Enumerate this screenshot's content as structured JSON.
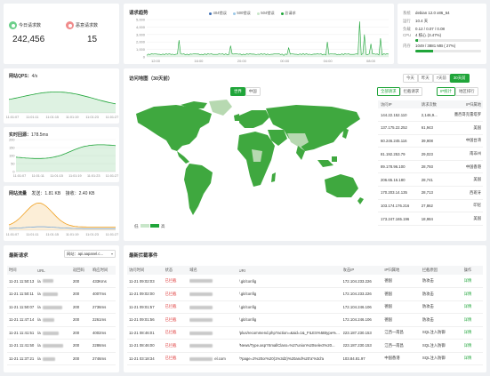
{
  "stats": {
    "today_label": "今日请求数",
    "today_value": "242,456",
    "malicious_label": "恶意请求数",
    "malicious_value": "15"
  },
  "trend": {
    "title": "请求趋势",
    "legend": [
      "404错误",
      "500错误",
      "504错误",
      "总请求"
    ],
    "legend_colors": [
      "#3f6fb5",
      "#9cc9e8",
      "#c8e6c9",
      "#20a53a"
    ],
    "y_ticks": [
      "5,000",
      "4,000",
      "3,000",
      "2,000",
      "1,000",
      "0"
    ],
    "x_ticks": [
      "12:00",
      "16:00",
      "20:00",
      "00:00",
      "04:00",
      "08:00"
    ]
  },
  "sysinfo": {
    "rows": [
      {
        "label": "系统",
        "value": "debian 12.0 x86_64"
      },
      {
        "label": "运行",
        "value": "10.4 天"
      },
      {
        "label": "负载",
        "value": "0.12 / 0.07 / 0.08"
      },
      {
        "label": "CPU",
        "value": "4 核心 (3.47%)"
      },
      {
        "label": "内存",
        "value": "1049 / 3881 MB ( 27%)"
      }
    ],
    "cpu_percent": 3.47,
    "mem_percent": 27
  },
  "qps": {
    "title": "网站QPS：",
    "value": "4/s",
    "x_ticks": [
      "11:01:07",
      "11:01:11",
      "11:01:15",
      "11:01:19",
      "11:01:23",
      "11:01:27"
    ]
  },
  "latency": {
    "title": "实时回源：",
    "value": "178.5ms",
    "y_ticks": [
      "200",
      "150",
      "100",
      "50",
      "0"
    ],
    "x_ticks": [
      "11:01:07",
      "11:01:11",
      "11:01:15",
      "11:01:19",
      "11:01:23",
      "11:01:27"
    ]
  },
  "traffic": {
    "title": "网站流量",
    "send_label": "发送：",
    "send_value": "1.81 KB",
    "recv_label": "接收：",
    "recv_value": "2.40 KB",
    "x_ticks": [
      "11:01:07",
      "11:01:11",
      "11:01:15",
      "11:01:19",
      "11:01:23",
      "11:01:27"
    ]
  },
  "map": {
    "title": "访问地图（30天前）",
    "tabs": [
      "世界",
      "中国"
    ],
    "range_tabs": [
      "今天",
      "昨天",
      "7天前",
      "30天前"
    ],
    "mode_tabs": [
      "全部请求",
      "拦截请求"
    ],
    "view_tabs": [
      "IP统计",
      "地区排行"
    ],
    "legend_low": "低",
    "legend_high": "高",
    "table_headers": [
      "访问IP",
      "请求次数",
      "IP归属地"
    ],
    "rows": [
      {
        "ip": "144.22.152.110",
        "count": "2,146,9...",
        "loc": "墨西哥克雷塔罗"
      },
      {
        "ip": "137.175.22.252",
        "count": "61,943",
        "loc": "美国"
      },
      {
        "ip": "60.246.245.116",
        "count": "39,908",
        "loc": "中国台湾"
      },
      {
        "ip": "81.192.253.79",
        "count": "29,023",
        "loc": "南非州"
      },
      {
        "ip": "89.178.96.100",
        "count": "28,793",
        "loc": "中国香港"
      },
      {
        "ip": "206.65.16.180",
        "count": "28,741",
        "loc": "美国"
      },
      {
        "ip": "170.203.14.135",
        "count": "28,713",
        "loc": "西班牙"
      },
      {
        "ip": "103.174.176.216",
        "count": "27,862",
        "loc": "印尼"
      },
      {
        "ip": "173.247.165.196",
        "count": "18,984",
        "loc": "美国"
      }
    ]
  },
  "recent": {
    "title": "最新请求",
    "site_prefix": "网站：",
    "site_value": "api.aapanel.c...",
    "headers": [
      "时间",
      "URL",
      "返回码",
      "响应时间"
    ],
    "rows": [
      {
        "time": "11-21 11:50:13",
        "url": "/a",
        "code": "200",
        "resp": "433Kms"
      },
      {
        "time": "11-21 11:50:11",
        "url": "/a",
        "code": "200",
        "resp": "4007ms"
      },
      {
        "time": "11-21 11:50:07",
        "url": "/a",
        "code": "200",
        "resp": "2736ms"
      },
      {
        "time": "11-21 11:47:14",
        "url": "/a",
        "code": "200",
        "resp": "2261ms"
      },
      {
        "time": "11-21 11:41:51",
        "url": "/a",
        "code": "200",
        "resp": "4002ms"
      },
      {
        "time": "11-21 11:41:50",
        "url": "/a",
        "code": "200",
        "resp": "2286ms"
      },
      {
        "time": "11-21 11:37:21",
        "url": "/a",
        "code": "200",
        "resp": "2746ms"
      }
    ]
  },
  "blocked": {
    "title": "最新拦截事件",
    "headers": [
      "访问时间",
      "状态",
      "域名",
      "URI",
      "攻击IP",
      "IP归属地",
      "拦截原因",
      "操作"
    ],
    "rows": [
      {
        "time": "11-21 09:02:03",
        "status": "已拦截",
        "domain": "",
        "uri": "/.git/config",
        "ip": "172.104.233.226",
        "loc": "德国",
        "reason": "防攻击",
        "op": "详情"
      },
      {
        "time": "11-21 09:02:00",
        "status": "已拦截",
        "domain": "",
        "uri": "/.git/config",
        "ip": "172.104.233.226",
        "loc": "德国",
        "reason": "防攻击",
        "op": "详情"
      },
      {
        "time": "11-21 09:01:57",
        "status": "已拦截",
        "domain": "",
        "uri": "/.git/config",
        "ip": "172.104.246.106",
        "loc": "德国",
        "reason": "防攻击",
        "op": "详情"
      },
      {
        "time": "11-21 09:01:56",
        "status": "已拦截",
        "domain": "",
        "uri": "/.git/config",
        "ip": "172.104.246.106",
        "loc": "德国",
        "reason": "防攻击",
        "op": "详情"
      },
      {
        "time": "11-21 08:46:01",
        "status": "已拦截",
        "domain": "",
        "uri": "/plus/recommend.php?action=&aid=1&_FILES%5Btype%5D...",
        "ip": "223.187.230.153",
        "loc": "江西一南昌",
        "reason": "SQL注入防御",
        "op": "详情"
      },
      {
        "time": "11-21 08:46:00",
        "status": "已拦截",
        "domain": "",
        "uri": "/News/Type.asp?SmallClass=%27union%20select%20...",
        "ip": "223.187.230.153",
        "loc": "江西一南昌",
        "reason": "SQL注入防御",
        "op": "详情"
      },
      {
        "time": "11-21 03:18:34",
        "status": "已拦截",
        "domain": "el.com",
        "uri": "/?page=2%20or%20(1%3d2)%20and%20'a'%3d'a",
        "ip": "103.84.81.97",
        "loc": "中国香港",
        "reason": "SQL注入防御",
        "op": "详情"
      }
    ]
  }
}
